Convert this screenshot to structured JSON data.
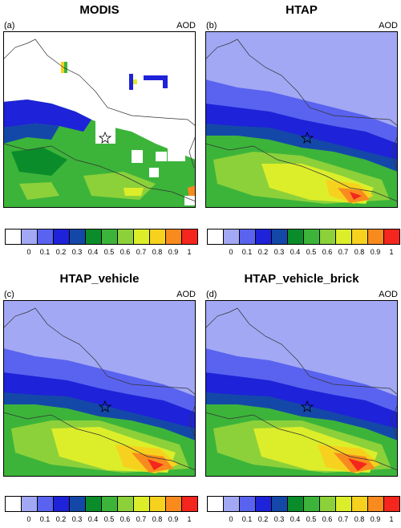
{
  "panels": [
    {
      "title": "MODIS",
      "label": "(a)",
      "variable": "AOD"
    },
    {
      "title": "HTAP",
      "label": "(b)",
      "variable": "AOD"
    },
    {
      "title": "HTAP_vehicle",
      "label": "(c)",
      "variable": "AOD"
    },
    {
      "title": "HTAP_vehicle_brick",
      "label": "(d)",
      "variable": "AOD"
    }
  ],
  "colorbar": {
    "colors": [
      "#ffffff",
      "#a2a8f4",
      "#5a63ef",
      "#1e22d8",
      "#1448a8",
      "#0a8c2a",
      "#3cb43a",
      "#8cd13a",
      "#dcee2a",
      "#f6d21e",
      "#f98a1e",
      "#f4261e"
    ],
    "ticks": [
      "0",
      "0.1",
      "0.2",
      "0.3",
      "0.4",
      "0.5",
      "0.6",
      "0.7",
      "0.8",
      "0.9",
      "1"
    ]
  }
}
